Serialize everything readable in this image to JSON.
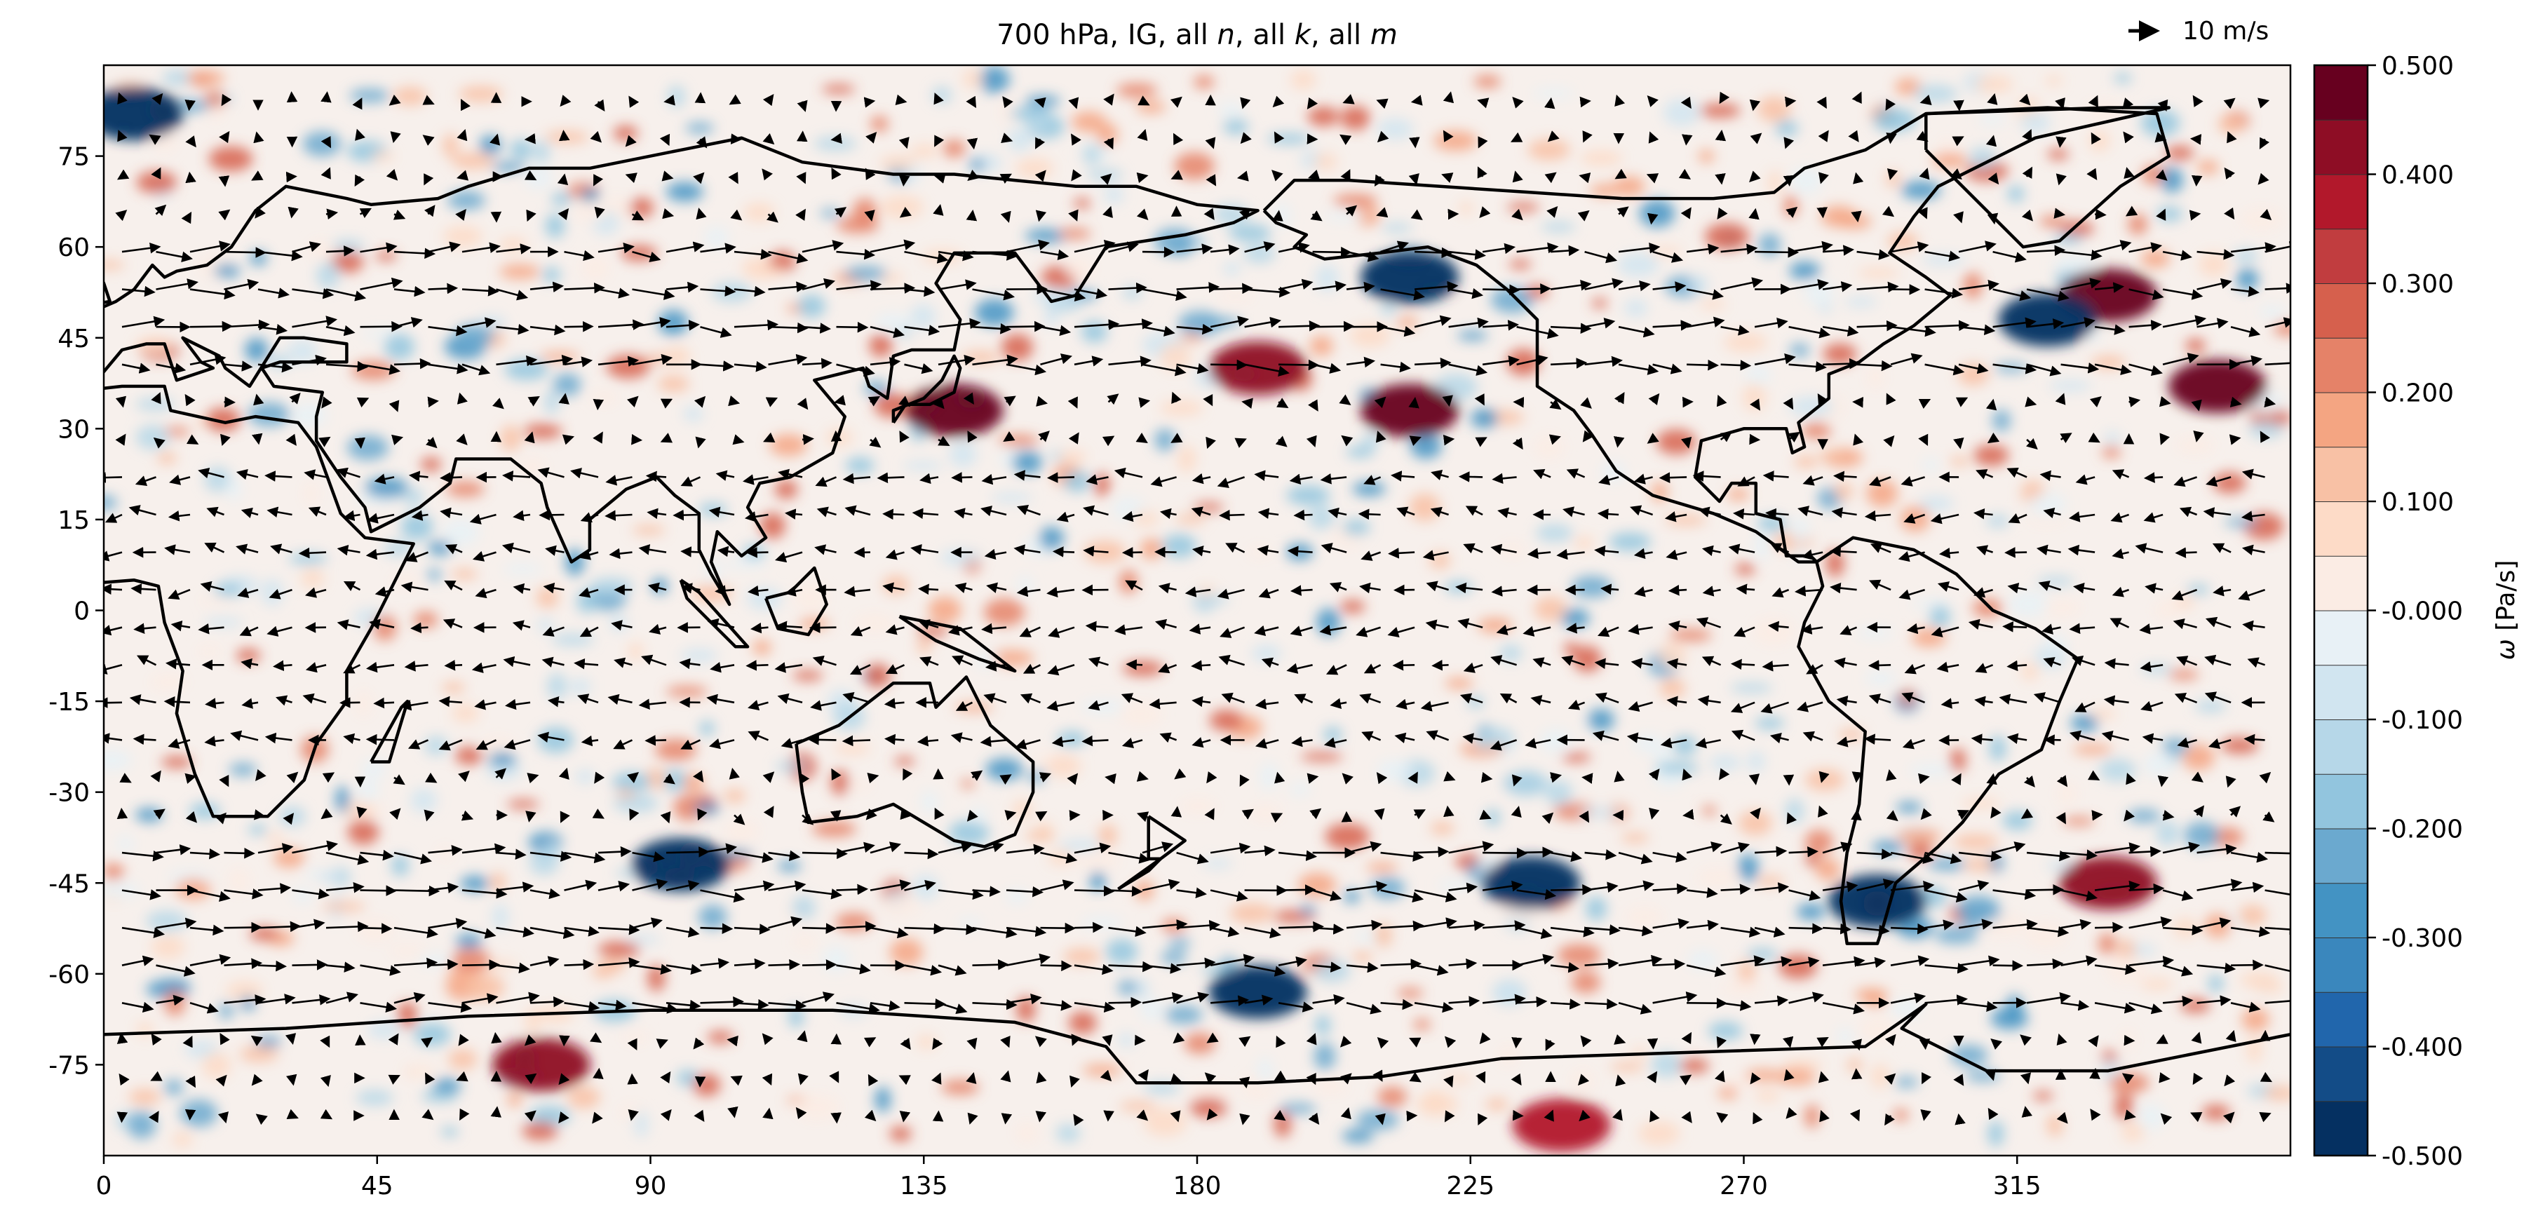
{
  "chart_data": {
    "type": "heatmap",
    "title": {
      "prefix": "700 hPa, IG, all ",
      "n": "n",
      "sep1": ", all ",
      "k": "k",
      "sep2": ", all ",
      "m": "m"
    },
    "quiver_key": {
      "value": 10,
      "label": "10 m/s"
    },
    "xaxis": {
      "label": "",
      "range": [
        0,
        360
      ],
      "ticks": [
        0,
        45,
        90,
        135,
        180,
        225,
        270,
        315
      ],
      "tick_labels": [
        "0",
        "45",
        "90",
        "135",
        "180",
        "225",
        "270",
        "315"
      ]
    },
    "yaxis": {
      "label": "",
      "range": [
        -90,
        90
      ],
      "ticks": [
        75,
        60,
        45,
        30,
        15,
        0,
        -15,
        -30,
        -45,
        -60,
        -75
      ],
      "tick_labels": [
        "75",
        "60",
        "45",
        "30",
        "15",
        "0",
        "-15",
        "-30",
        "-45",
        "-60",
        "-75"
      ]
    },
    "colorbar": {
      "label_symbol": "ω",
      "label_unit": " [Pa/s]",
      "range": [
        -0.5,
        0.5
      ],
      "levels": 20,
      "ticks": [
        0.5,
        0.4,
        0.3,
        0.2,
        0.1,
        0.0,
        -0.1,
        -0.2,
        -0.3,
        -0.4,
        -0.5
      ],
      "tick_labels": [
        "0.500",
        "0.400",
        "0.300",
        "0.200",
        "0.100",
        "-0.000",
        "-0.100",
        "-0.200",
        "-0.300",
        "-0.400",
        "-0.500"
      ],
      "colors": [
        "#053061",
        "#134c87",
        "#2166ac",
        "#3a87bd",
        "#4393c3",
        "#6ba9cf",
        "#92c5de",
        "#b6d7e8",
        "#d1e5f0",
        "#e8f1f6",
        "#fbece4",
        "#fddbc7",
        "#f8c1a5",
        "#f4a582",
        "#e58268",
        "#d6604d",
        "#c13d3f",
        "#b2182b",
        "#8e0d25",
        "#67001f"
      ]
    },
    "field": {
      "variable": "omega",
      "units": "Pa/s",
      "grid": "regular lon-lat, 0-360 E, 90S-90N",
      "notable_features": [
        {
          "lon": 215,
          "lat": 55,
          "omega": -0.45
        },
        {
          "lon": 215,
          "lat": 33,
          "omega": 0.45
        },
        {
          "lon": 190,
          "lat": 40,
          "omega": 0.4
        },
        {
          "lon": 140,
          "lat": 33,
          "omega": 0.45
        },
        {
          "lon": 330,
          "lat": 52,
          "omega": 0.45
        },
        {
          "lon": 320,
          "lat": 48,
          "omega": -0.5
        },
        {
          "lon": 292,
          "lat": -48,
          "omega": -0.5
        },
        {
          "lon": 330,
          "lat": -45,
          "omega": 0.4
        },
        {
          "lon": 235,
          "lat": -45,
          "omega": -0.5
        },
        {
          "lon": 190,
          "lat": -63,
          "omega": -0.5
        },
        {
          "lon": 95,
          "lat": -42,
          "omega": -0.45
        },
        {
          "lon": 72,
          "lat": -75,
          "omega": 0.4
        },
        {
          "lon": 240,
          "lat": -85,
          "omega": 0.35
        },
        {
          "lon": 5,
          "lat": 82,
          "omega": -0.45
        },
        {
          "lon": 348,
          "lat": 37,
          "omega": 0.5
        }
      ]
    },
    "wind": {
      "units": "m/s",
      "note": "quiver field at 700 hPa; strongest westerlies along 45-60 S and near 45 N Pacific"
    },
    "overlay": "coastlines"
  }
}
